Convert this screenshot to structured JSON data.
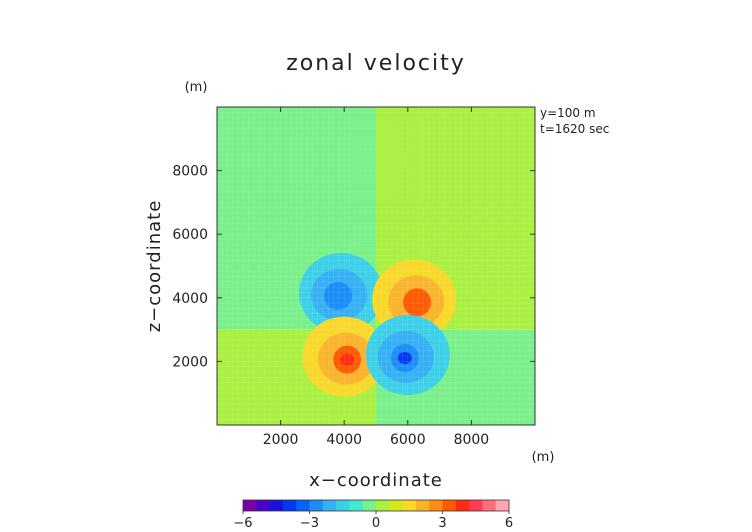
{
  "chart_data": {
    "type": "heatmap",
    "title": "zonal velocity",
    "xlabel": "x−coordinate",
    "ylabel": "z−coordinate",
    "x_unit": "(m)",
    "y_unit": "(m)",
    "annotations": [
      "y=100  m",
      "t=1620 sec"
    ],
    "xlim": [
      0,
      10000
    ],
    "ylim": [
      0,
      10000
    ],
    "xticks": [
      2000,
      4000,
      6000,
      8000
    ],
    "yticks": [
      2000,
      4000,
      6000,
      8000
    ],
    "x_tick_labels": [
      "2000",
      "4000",
      "6000",
      "8000"
    ],
    "y_tick_labels": [
      "2000",
      "4000",
      "6000",
      "8000"
    ],
    "colorbar": {
      "min": -6,
      "max": 6,
      "tick_values": [
        -6,
        -3,
        0,
        3,
        6
      ],
      "tick_labels": [
        "−6",
        "−3",
        "0",
        "3",
        "6"
      ],
      "colors": [
        "#7a00aa",
        "#4a00c8",
        "#1a10e0",
        "#0038f0",
        "#0064f8",
        "#1c8cf8",
        "#36b0f4",
        "#3cd0e8",
        "#44e8d0",
        "#7af08a",
        "#aaf040",
        "#d4e818",
        "#f8d828",
        "#fab42c",
        "#ff8a14",
        "#ff5a00",
        "#ff2a10",
        "#ff3c50",
        "#ff6c7c",
        "#ffa6b0"
      ]
    },
    "background_regions": [
      {
        "x": [
          0,
          5000
        ],
        "z": [
          3000,
          10000
        ],
        "value": -0.3
      },
      {
        "x": [
          5000,
          10000
        ],
        "z": [
          3000,
          10000
        ],
        "value": 0.3
      },
      {
        "x": [
          0,
          5000
        ],
        "z": [
          0,
          3000
        ],
        "value": 0.3
      },
      {
        "x": [
          5000,
          10000
        ],
        "z": [
          0,
          3000
        ],
        "value": -0.3
      }
    ],
    "features": [
      {
        "name": "upper-left negative lobe",
        "center": [
          3900,
          4150
        ],
        "min_value": -3.5
      },
      {
        "name": "upper-right positive lobe",
        "center": [
          6200,
          3950
        ],
        "max_value": 3.5
      },
      {
        "name": "lower-left positive lobe",
        "center": [
          4000,
          2150
        ],
        "max_value": 4.5
      },
      {
        "name": "lower-right negative lobe",
        "center": [
          6000,
          2200
        ],
        "min_value": -4.5
      }
    ]
  }
}
